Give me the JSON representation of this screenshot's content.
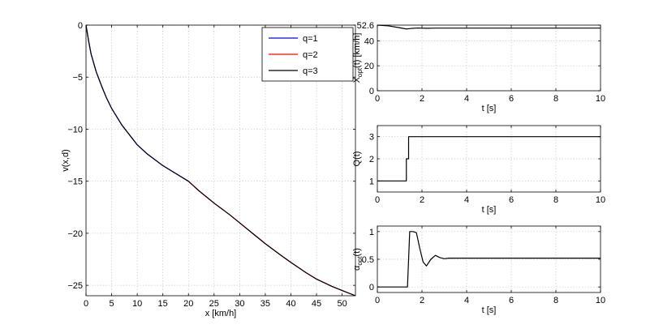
{
  "chart_data": [
    {
      "id": "left",
      "type": "line",
      "xlabel": "x [km/h]",
      "ylabel": "v(x,d)",
      "xlim": [
        0,
        52.6
      ],
      "ylim": [
        -26,
        0
      ],
      "xticks": [
        0,
        5,
        10,
        15,
        20,
        25,
        30,
        35,
        40,
        45,
        50
      ],
      "yticks": [
        0,
        -5,
        -10,
        -15,
        -20,
        -25
      ],
      "grid": true,
      "legend": "top-right",
      "series": [
        {
          "name": "q=1",
          "color": "#0000ff",
          "x": [
            0,
            0.5,
            1,
            2,
            3,
            4,
            5,
            7,
            10,
            12,
            15,
            18,
            20
          ],
          "y": [
            0,
            -1.5,
            -2.8,
            -4.5,
            -5.8,
            -7.0,
            -8.0,
            -9.6,
            -11.5,
            -12.4,
            -13.5,
            -14.4,
            -15.0
          ]
        },
        {
          "name": "q=2",
          "color": "#ff0000",
          "x": [
            20,
            22,
            25,
            28,
            30,
            33,
            35,
            38,
            40,
            43,
            45,
            48,
            50,
            52.6
          ],
          "y": [
            -15.0,
            -15.9,
            -17.1,
            -18.2,
            -19.0,
            -20.2,
            -21.0,
            -22.1,
            -22.8,
            -23.8,
            -24.4,
            -25.1,
            -25.5,
            -26.0
          ]
        },
        {
          "name": "q=3",
          "color": "#000000",
          "x": [
            0,
            0.5,
            1,
            2,
            3,
            4,
            5,
            7,
            10,
            12,
            15,
            18,
            20,
            22,
            25,
            28,
            30,
            33,
            35,
            38,
            40,
            43,
            45,
            48,
            50,
            52.6
          ],
          "y": [
            0,
            -1.5,
            -2.8,
            -4.5,
            -5.8,
            -7.0,
            -8.0,
            -9.6,
            -11.5,
            -12.4,
            -13.5,
            -14.4,
            -15.0,
            -15.9,
            -17.1,
            -18.2,
            -19.0,
            -20.2,
            -21.0,
            -22.1,
            -22.8,
            -23.8,
            -24.4,
            -25.1,
            -25.5,
            -26.0
          ]
        }
      ]
    },
    {
      "id": "xopt",
      "type": "line",
      "xlabel": "t [s]",
      "ylabel_main": "X",
      "ylabel_sub": "opt",
      "ylabel_rest": "(t) [km/h]",
      "xlim": [
        0,
        10
      ],
      "ylim": [
        0,
        52.6
      ],
      "xticks": [
        0,
        2,
        4,
        6,
        8,
        10
      ],
      "yticks": [
        0,
        20,
        40,
        52.6
      ],
      "ytick_labels": [
        "0",
        "20",
        "40",
        "52.6"
      ],
      "grid": true,
      "series": [
        {
          "color": "#000000",
          "x": [
            0,
            0.5,
            1.0,
            1.3,
            1.5,
            1.8,
            2.2,
            2.6,
            3.0,
            10
          ],
          "y": [
            52.6,
            52.0,
            50.5,
            49.5,
            49.9,
            50.3,
            50.1,
            50.2,
            50.2,
            50.2
          ]
        }
      ]
    },
    {
      "id": "q",
      "type": "line",
      "xlabel": "t [s]",
      "ylabel_main": "Q(t)",
      "xlim": [
        0,
        10
      ],
      "ylim": [
        0.5,
        3.5
      ],
      "xticks": [
        0,
        2,
        4,
        6,
        8,
        10
      ],
      "yticks": [
        1,
        2,
        3
      ],
      "grid": true,
      "series": [
        {
          "color": "#000000",
          "x": [
            0,
            1.3,
            1.3,
            1.4,
            1.4,
            10
          ],
          "y": [
            1,
            1,
            2,
            2,
            3,
            3
          ]
        }
      ]
    },
    {
      "id": "alpha",
      "type": "line",
      "xlabel": "t [s]",
      "ylabel_main": "α",
      "ylabel_sub": "opt",
      "ylabel_rest": "(t)",
      "xlim": [
        0,
        10
      ],
      "ylim": [
        -0.1,
        1.1
      ],
      "xticks": [
        0,
        2,
        4,
        6,
        8,
        10
      ],
      "yticks": [
        0,
        0.5,
        1
      ],
      "ytick_labels": [
        "0",
        "0.5",
        "1"
      ],
      "grid": true,
      "series": [
        {
          "color": "#000000",
          "x": [
            0,
            1.35,
            1.45,
            1.6,
            1.75,
            1.9,
            2.05,
            2.2,
            2.4,
            2.6,
            2.8,
            3.0,
            3.2,
            3.5,
            10
          ],
          "y": [
            0,
            0,
            1,
            1,
            0.98,
            0.7,
            0.45,
            0.38,
            0.5,
            0.57,
            0.53,
            0.51,
            0.52,
            0.52,
            0.52
          ]
        }
      ]
    }
  ]
}
